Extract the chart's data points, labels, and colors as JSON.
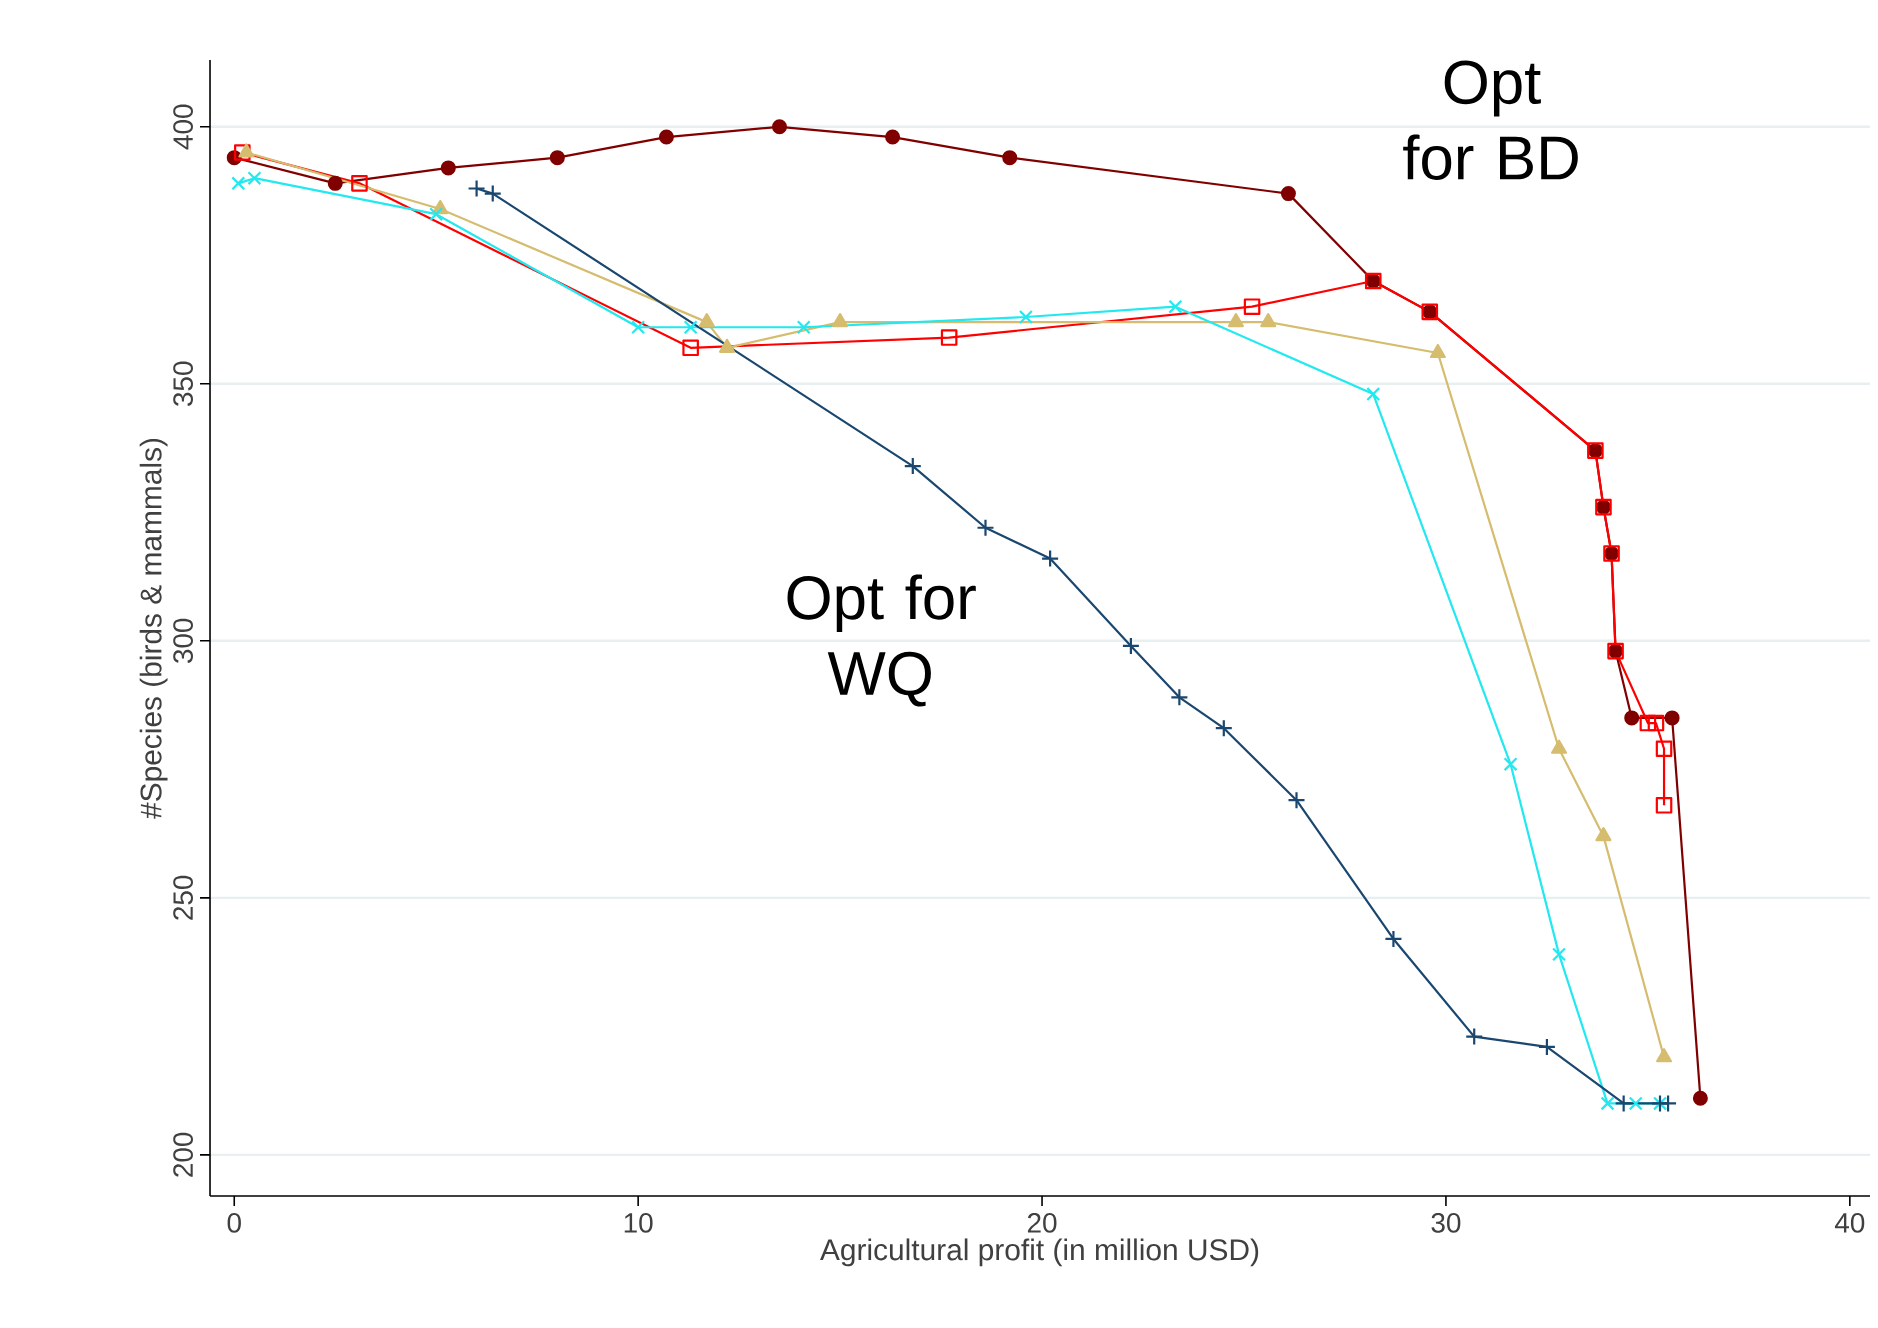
{
  "chart_data": {
    "type": "line",
    "xlabel": "Agricultural profit (in million USD)",
    "ylabel": "#Species (birds & mammals)",
    "xlim": [
      -0.6,
      40.5
    ],
    "ylim": [
      192,
      413
    ],
    "xticks": [
      0,
      10,
      20,
      30,
      40
    ],
    "yticks": [
      200,
      250,
      300,
      350,
      400
    ],
    "grid": "y",
    "series": [
      {
        "color": "#800000",
        "marker": "circle",
        "x": [
          0,
          2.5,
          5.3,
          8.0,
          10.7,
          13.5,
          16.3,
          19.2,
          26.1,
          28.2,
          29.6,
          33.7,
          33.9,
          34.1,
          34.2,
          34.6,
          35.6,
          36.3
        ],
        "values": [
          394,
          389,
          392,
          394,
          398,
          400,
          398,
          394,
          387,
          370,
          364,
          337,
          326,
          317,
          298,
          285,
          285,
          211
        ]
      },
      {
        "color": "#ff0000",
        "marker": "square",
        "x": [
          0.2,
          3.1,
          11.3,
          17.7,
          25.2,
          28.2,
          29.6,
          33.7,
          33.9,
          34.1,
          34.2,
          35.0,
          35.2,
          35.4,
          35.4
        ],
        "values": [
          395,
          389,
          357,
          359,
          365,
          370,
          364,
          337,
          326,
          317,
          298,
          284,
          284,
          279,
          268
        ]
      },
      {
        "color": "#d6bc6e",
        "marker": "triangle",
        "x": [
          0.3,
          5.1,
          11.7,
          12.2,
          15.0,
          24.8,
          25.6,
          29.8,
          32.8,
          33.9,
          35.4
        ],
        "values": [
          395,
          384,
          362,
          357,
          362,
          362,
          362,
          356,
          279,
          262,
          219
        ]
      },
      {
        "color": "#22e8f0",
        "marker": "cross",
        "x": [
          0.1,
          0.5,
          5.0,
          10.0,
          11.3,
          14.1,
          19.6,
          23.3,
          28.2,
          31.6,
          32.8,
          34.0,
          34.7,
          35.3
        ],
        "values": [
          389,
          390,
          383,
          361,
          361,
          361,
          363,
          365,
          348,
          276,
          239,
          210,
          210,
          210
        ]
      },
      {
        "color": "#1a476f",
        "marker": "plus",
        "x": [
          6.0,
          6.4,
          16.8,
          18.6,
          20.2,
          22.2,
          23.4,
          24.5,
          26.3,
          28.7,
          30.7,
          32.5,
          34.4,
          35.3,
          35.5
        ],
        "values": [
          388,
          387,
          334,
          322,
          316,
          299,
          289,
          283,
          269,
          242,
          223,
          221,
          210,
          210,
          210
        ]
      }
    ],
    "annotations": [
      "Opt for BD",
      "Opt for WQ"
    ]
  }
}
